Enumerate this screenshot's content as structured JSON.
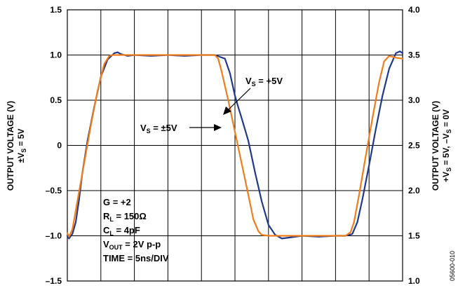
{
  "chart_data": {
    "type": "line",
    "y_left": {
      "ylim": [
        -1.5,
        1.5
      ],
      "ticks": [
        "1.5",
        "1.0",
        "0.5",
        "0",
        "–0.5",
        "–1.0",
        "–1.5"
      ],
      "label_line1": "OUTPUT VOLTAGE (V)",
      "label_line2_pre": "±V",
      "label_line2_sub": "S",
      "label_line2_post": " = 5V"
    },
    "y_right": {
      "ylim": [
        1.0,
        4.0
      ],
      "ticks": [
        "4.0",
        "3.5",
        "3.0",
        "2.5",
        "2.0",
        "1.5",
        "1.0"
      ],
      "label_line1": "OUTPUT VOLTAGE (V)",
      "label_line2_a": "+V",
      "label_line2_sub1": "S",
      "label_line2_b": " = 5V, –V",
      "label_line2_sub2": "S",
      "label_line2_c": " = 0V"
    },
    "x": {
      "xlim": [
        0,
        10
      ],
      "grid_divisions": 10,
      "label": ""
    },
    "grid": true,
    "series": [
      {
        "name": "VS = +5V",
        "color": "#1f3a8a",
        "x": [
          0,
          0.05,
          0.15,
          0.25,
          0.35,
          0.45,
          0.6,
          0.8,
          1.0,
          1.2,
          1.4,
          1.5,
          1.6,
          1.8,
          2.0,
          2.5,
          3.0,
          3.5,
          4.0,
          4.4,
          4.55,
          4.7,
          4.85,
          5.0,
          5.1,
          5.2,
          5.4,
          5.6,
          5.8,
          6.0,
          6.2,
          6.4,
          6.6,
          7.0,
          7.5,
          8.0,
          8.3,
          8.5,
          8.65,
          8.8,
          9.0,
          9.2,
          9.4,
          9.6,
          9.8,
          9.92,
          10.0
        ],
        "y": [
          -1.0,
          -1.03,
          -0.98,
          -0.85,
          -0.6,
          -0.3,
          0.05,
          0.42,
          0.76,
          0.95,
          1.02,
          1.03,
          1.01,
          0.99,
          1.0,
          0.99,
          1.0,
          0.99,
          1.0,
          1.0,
          0.98,
          0.96,
          0.8,
          0.55,
          0.42,
          0.3,
          0.05,
          -0.3,
          -0.62,
          -0.88,
          -0.99,
          -1.03,
          -1.02,
          -1.0,
          -1.01,
          -1.0,
          -1.0,
          -0.98,
          -0.85,
          -0.6,
          -0.22,
          0.18,
          0.55,
          0.85,
          1.02,
          1.04,
          1.02
        ]
      },
      {
        "name": "VS = ±5V",
        "color": "#f07d1a",
        "x": [
          0,
          0.05,
          0.15,
          0.3,
          0.5,
          0.7,
          0.9,
          1.1,
          1.25,
          1.35,
          1.5,
          2.0,
          2.5,
          3.0,
          3.5,
          4.0,
          4.4,
          4.5,
          4.6,
          4.8,
          5.0,
          5.2,
          5.4,
          5.55,
          5.7,
          5.8,
          6.0,
          6.5,
          7.0,
          7.5,
          8.0,
          8.3,
          8.45,
          8.55,
          8.7,
          8.9,
          9.1,
          9.3,
          9.45,
          9.6,
          9.8,
          10.0
        ],
        "y": [
          -0.97,
          -1.01,
          -0.93,
          -0.62,
          -0.2,
          0.22,
          0.6,
          0.9,
          0.99,
          1.0,
          1.0,
          1.0,
          1.0,
          1.0,
          1.0,
          1.0,
          1.0,
          0.96,
          0.82,
          0.5,
          0.15,
          -0.2,
          -0.55,
          -0.82,
          -0.95,
          -0.99,
          -1.0,
          -1.0,
          -1.0,
          -1.0,
          -1.0,
          -1.0,
          -0.96,
          -0.85,
          -0.55,
          -0.12,
          0.3,
          0.7,
          0.93,
          0.99,
          0.97,
          0.96
        ]
      }
    ],
    "annotations": {
      "vs_pos_pre": "V",
      "vs_pos_sub": "S",
      "vs_pos_post": " = +5V",
      "vs_bi_pre": "V",
      "vs_bi_sub": "S",
      "vs_bi_post": " = ±5V",
      "cond_gain": "G = +2",
      "cond_rl_pre": "R",
      "cond_rl_sub": "L",
      "cond_rl_post": " = 150Ω",
      "cond_cl_pre": "C",
      "cond_cl_sub": "L",
      "cond_cl_post": " = 4pF",
      "cond_vout_pre": "V",
      "cond_vout_sub": "OUT",
      "cond_vout_post": " = 2V p-p",
      "cond_time": "TIME = 5ns/DIV"
    },
    "figure_id": "05600-010"
  }
}
